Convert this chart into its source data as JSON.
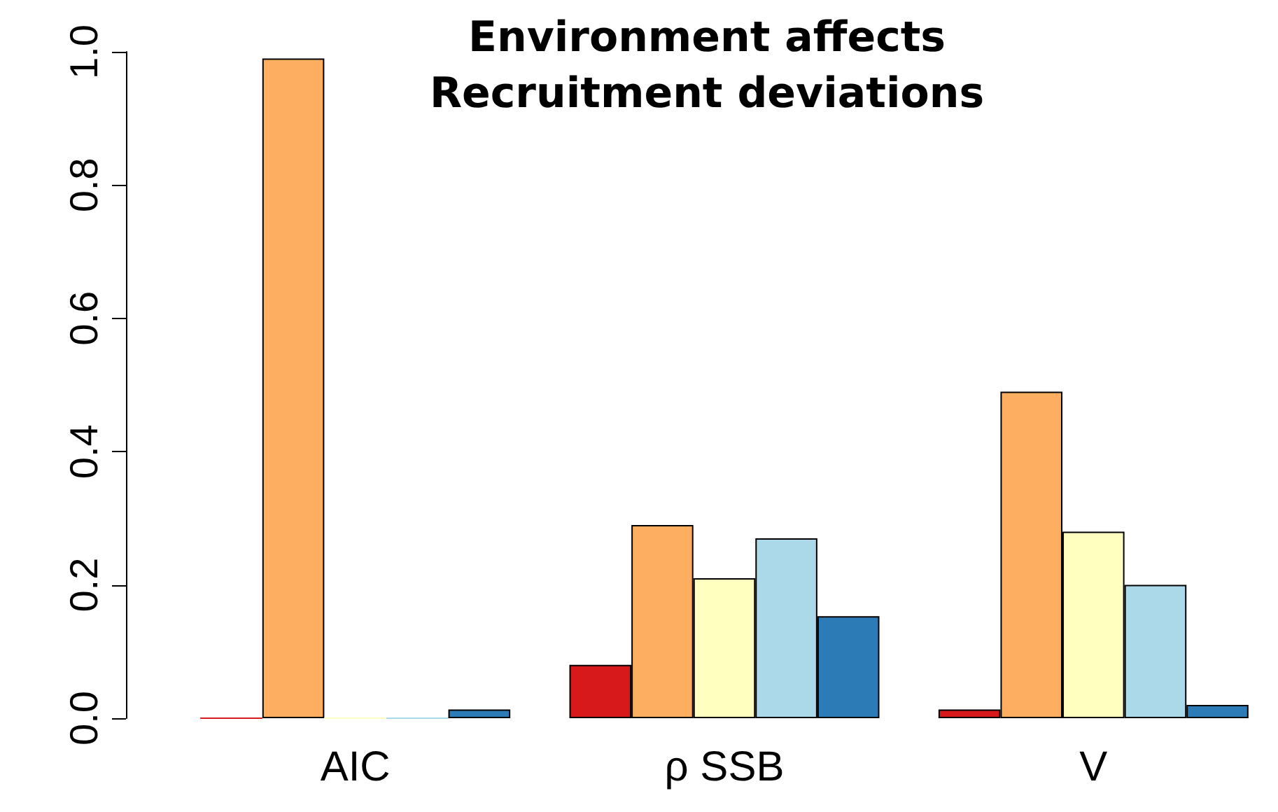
{
  "chart_data": {
    "type": "bar",
    "title": "Environment affects\nRecruitment deviations",
    "categories": [
      "AIC",
      "ρ SSB",
      "V"
    ],
    "series": [
      {
        "color": "#d7191c",
        "values": [
          0,
          0.08,
          0.013
        ]
      },
      {
        "color": "#fdae61",
        "values": [
          0.99,
          0.29,
          0.49
        ]
      },
      {
        "color": "#ffffbf",
        "values": [
          0,
          0.21,
          0.28
        ]
      },
      {
        "color": "#abd9e9",
        "values": [
          0,
          0.27,
          0.2
        ]
      },
      {
        "color": "#2c7bb6",
        "values": [
          0.013,
          0.153,
          0.02
        ]
      }
    ],
    "ylim": [
      0,
      1
    ],
    "yticks": [
      {
        "value": 0,
        "label": "0.0"
      },
      0.2,
      0.4,
      0.6,
      0.8,
      {
        "value": 1,
        "label": "1.0"
      }
    ],
    "grid": false
  }
}
